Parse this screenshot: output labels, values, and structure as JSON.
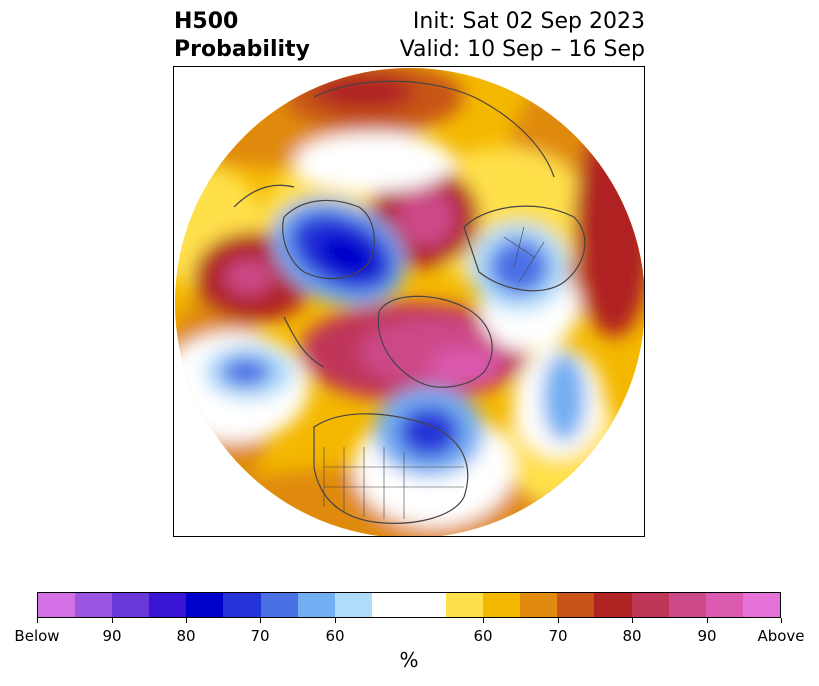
{
  "title": {
    "left_line1": "H500",
    "left_line2": "Probability",
    "right_line1": "Init: Sat 02 Sep 2023",
    "right_line2": "Valid: 10 Sep – 16 Sep"
  },
  "colorbar": {
    "unit": "%",
    "colors": [
      "#d46fe6",
      "#9a56e0",
      "#6a38d8",
      "#3a14d4",
      "#0000cc",
      "#2534d8",
      "#4a70e6",
      "#73aef2",
      "#aedcf9",
      "#ffffff",
      "#ffffff",
      "#ffe04c",
      "#f4b800",
      "#e08a10",
      "#c85418",
      "#b02424",
      "#c03658",
      "#cc4a88",
      "#da5ab0",
      "#e472d8"
    ],
    "ticks": [
      {
        "label": "Below"
      },
      {
        "label": "90"
      },
      {
        "label": "80"
      },
      {
        "label": "70"
      },
      {
        "label": "60"
      },
      {
        "label": "60"
      },
      {
        "label": "70"
      },
      {
        "label": "80"
      },
      {
        "label": "90"
      },
      {
        "label": "Above"
      }
    ]
  },
  "palette": {
    "above_weak": "#ffe04c",
    "above_mid": "#f4b800",
    "above_orange": "#e08a10",
    "above_dorange": "#c85418",
    "above_red": "#b02424",
    "above_crimson": "#c03658",
    "above_pink": "#cc4a88",
    "above_hot": "#da5ab0",
    "below_light": "#aedcf9",
    "below_sky": "#73aef2",
    "below_blue": "#4a70e6",
    "below_royal": "#2534d8",
    "below_deep": "#0000cc",
    "coast": "#444444"
  }
}
